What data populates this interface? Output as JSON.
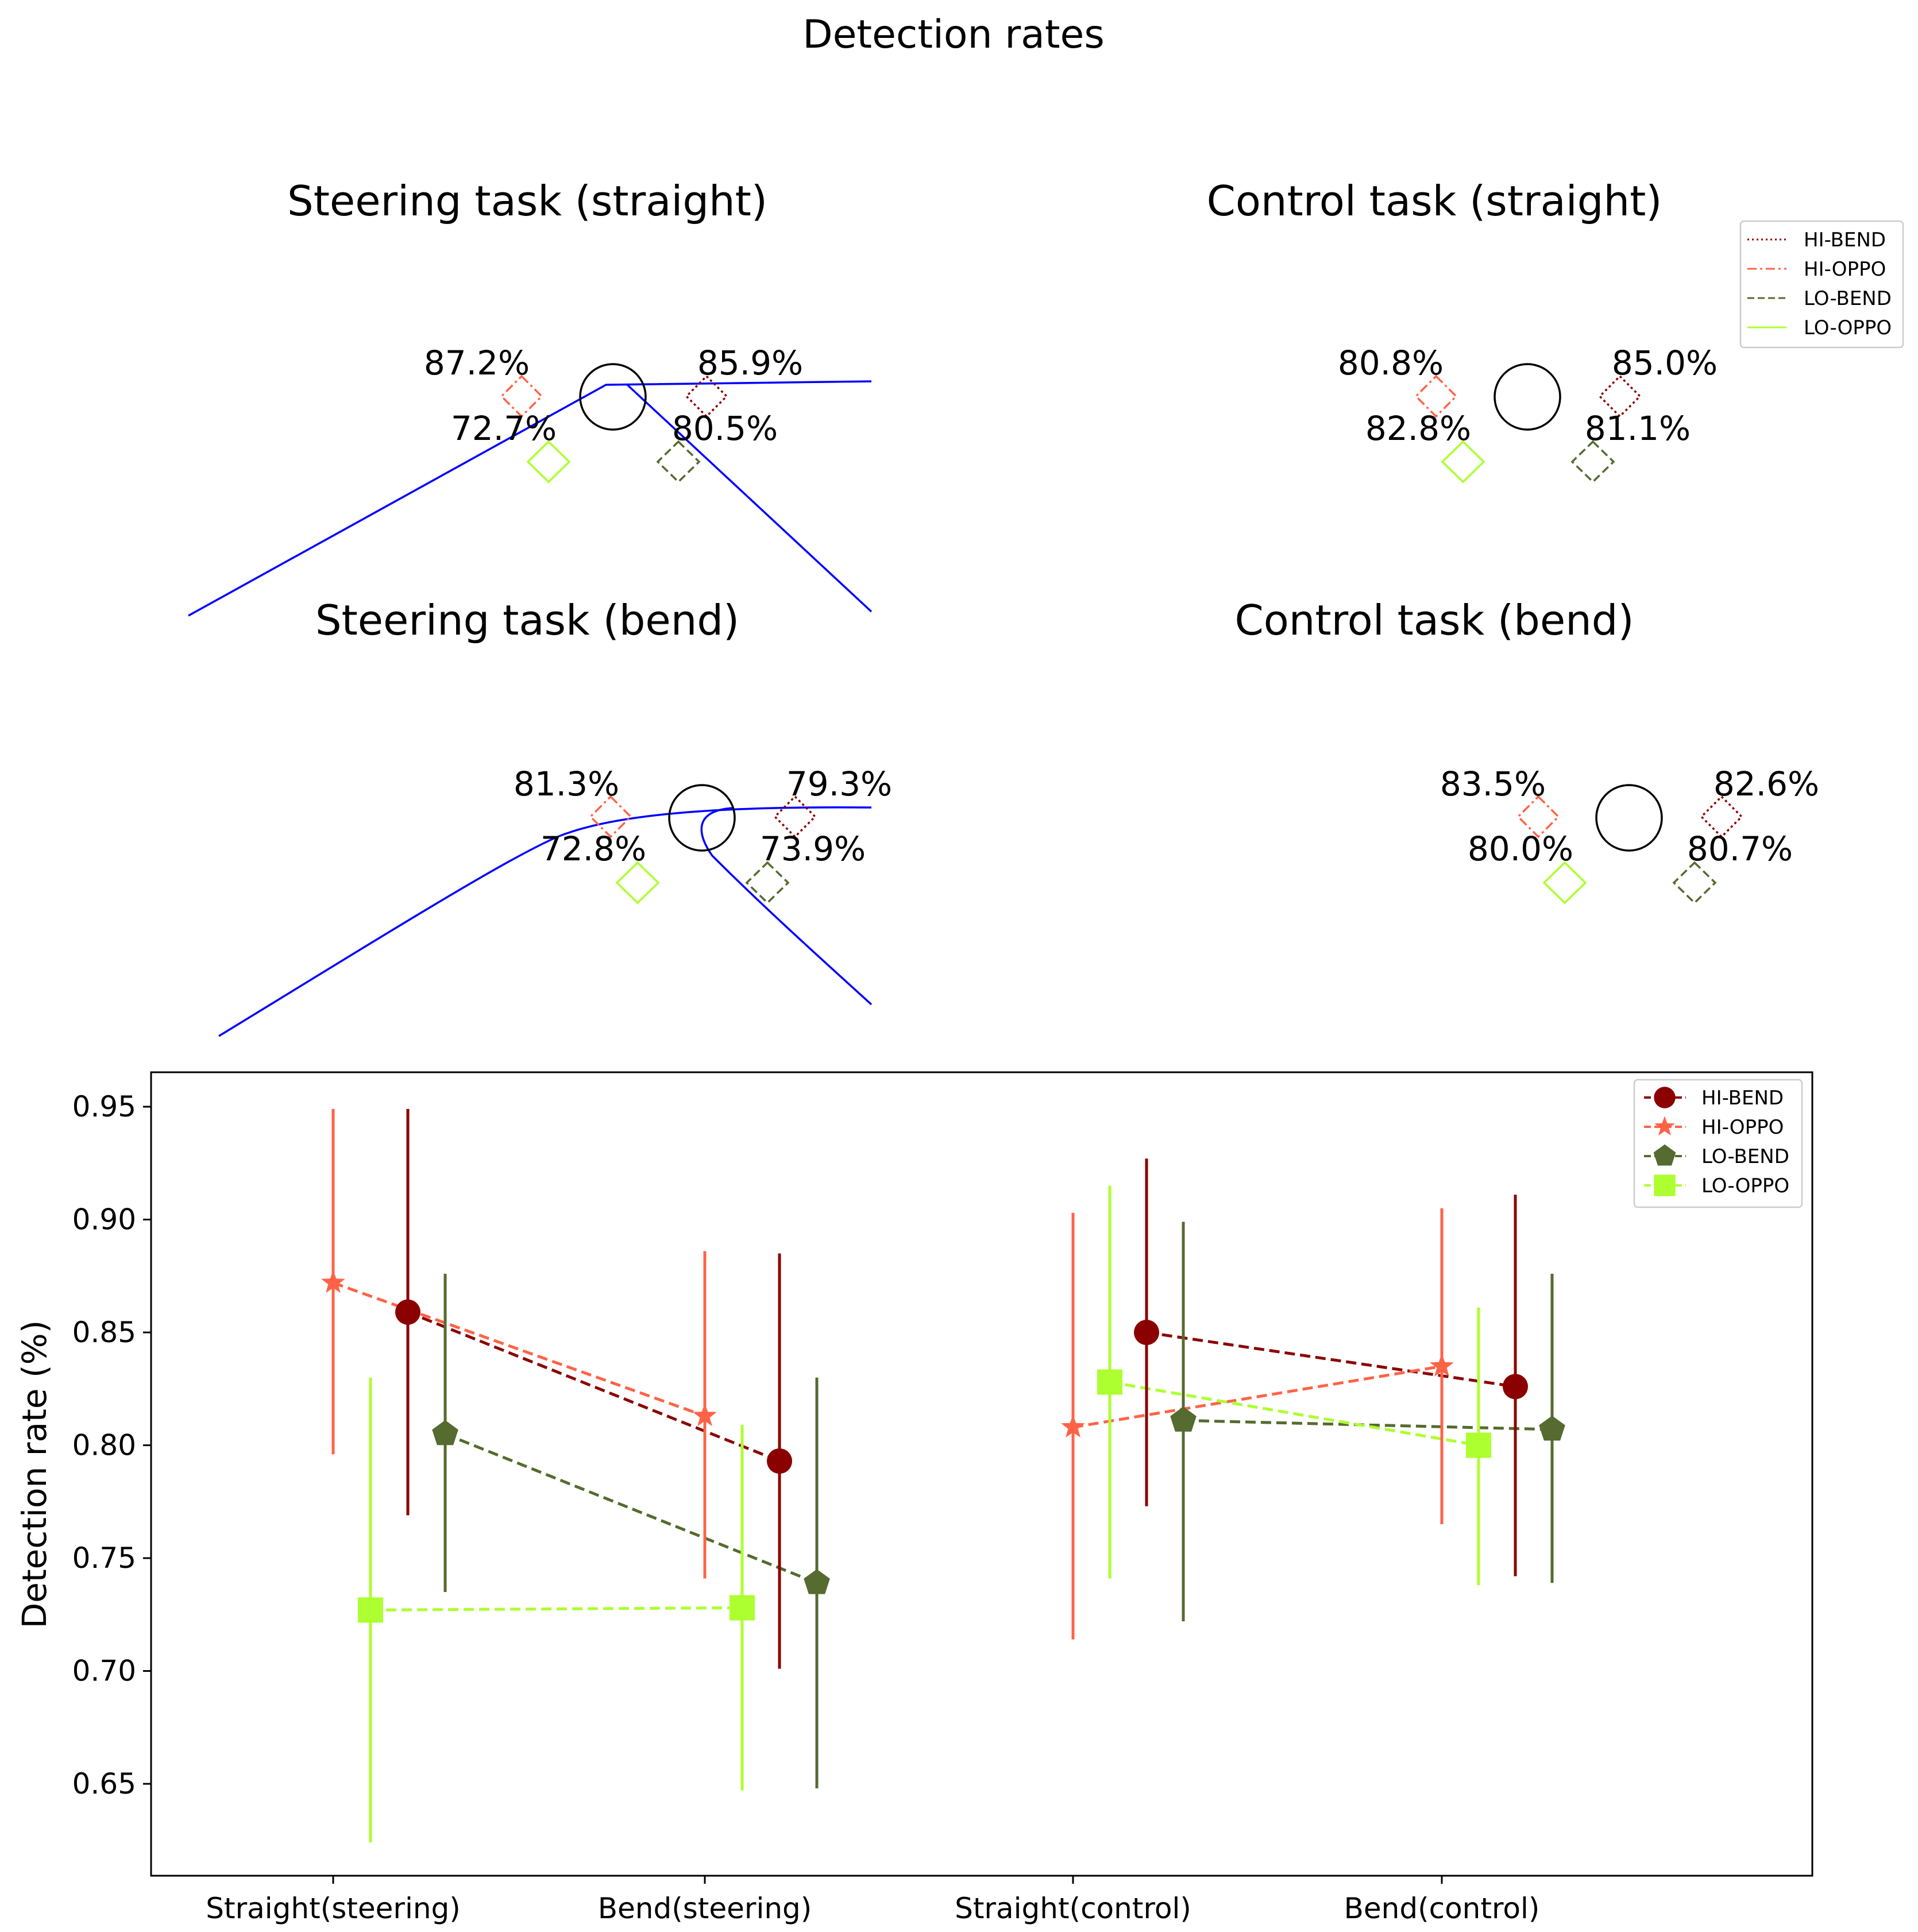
{
  "figure_title": "Detection rates",
  "series_legend": [
    {
      "name": "HI-BEND",
      "color": "#8b0000",
      "dash": "dotted"
    },
    {
      "name": "HI-OPPO",
      "color": "#ff6347",
      "dash": "dashdot"
    },
    {
      "name": "LO-BEND",
      "color": "#556b2f",
      "dash": "dashed"
    },
    {
      "name": "LO-OPPO",
      "color": "#adff2f",
      "dash": "solid"
    }
  ],
  "panels": [
    {
      "key": "ss",
      "title": "Steering task (straight)",
      "road": "straight",
      "values": {
        "HI-OPPO": "87.2%",
        "HI-BEND": "85.9%",
        "LO-OPPO": "72.7%",
        "LO-BEND": "80.5%"
      }
    },
    {
      "key": "cs",
      "title": "Control task (straight)",
      "road": "none",
      "values": {
        "HI-OPPO": "80.8%",
        "HI-BEND": "85.0%",
        "LO-OPPO": "82.8%",
        "LO-BEND": "81.1%"
      }
    },
    {
      "key": "sb",
      "title": "Steering task (bend)",
      "road": "bend",
      "values": {
        "HI-OPPO": "81.3%",
        "HI-BEND": "79.3%",
        "LO-OPPO": "72.8%",
        "LO-BEND": "73.9%"
      }
    },
    {
      "key": "cb",
      "title": "Control task (bend)",
      "road": "none",
      "values": {
        "HI-OPPO": "83.5%",
        "HI-BEND": "82.6%",
        "LO-OPPO": "80.0%",
        "LO-BEND": "80.7%"
      }
    }
  ],
  "chart_data": {
    "type": "line",
    "title": "",
    "xlabel": "",
    "ylabel": "Detection rate (%)",
    "categories": [
      "Straight(steering)",
      "Bend(steering)",
      "Straight(control)",
      "Bend(control)"
    ],
    "ylim": [
      0.62,
      0.965
    ],
    "yticks": [
      "0.65",
      "0.70",
      "0.75",
      "0.80",
      "0.85",
      "0.90",
      "0.95"
    ],
    "grid": false,
    "legend_position": "top-right",
    "series": [
      {
        "name": "HI-BEND",
        "marker": "circle",
        "color": "#8b0000",
        "values": [
          0.859,
          0.793,
          0.85,
          0.826
        ],
        "err_low": [
          0.769,
          0.701,
          0.773,
          0.742
        ],
        "err_high": [
          0.949,
          0.885,
          0.927,
          0.911
        ]
      },
      {
        "name": "HI-OPPO",
        "marker": "star",
        "color": "#ff6347",
        "values": [
          0.872,
          0.813,
          0.808,
          0.835
        ],
        "err_low": [
          0.796,
          0.741,
          0.714,
          0.765
        ],
        "err_high": [
          0.949,
          0.886,
          0.903,
          0.905
        ]
      },
      {
        "name": "LO-BEND",
        "marker": "pentagon",
        "color": "#556b2f",
        "values": [
          0.805,
          0.739,
          0.811,
          0.807
        ],
        "err_low": [
          0.735,
          0.648,
          0.722,
          0.739
        ],
        "err_high": [
          0.876,
          0.83,
          0.899,
          0.876
        ]
      },
      {
        "name": "LO-OPPO",
        "marker": "square",
        "color": "#adff2f",
        "values": [
          0.727,
          0.728,
          0.828,
          0.8
        ],
        "err_low": [
          0.624,
          0.647,
          0.741,
          0.738
        ],
        "err_high": [
          0.83,
          0.809,
          0.915,
          0.861
        ]
      }
    ]
  }
}
